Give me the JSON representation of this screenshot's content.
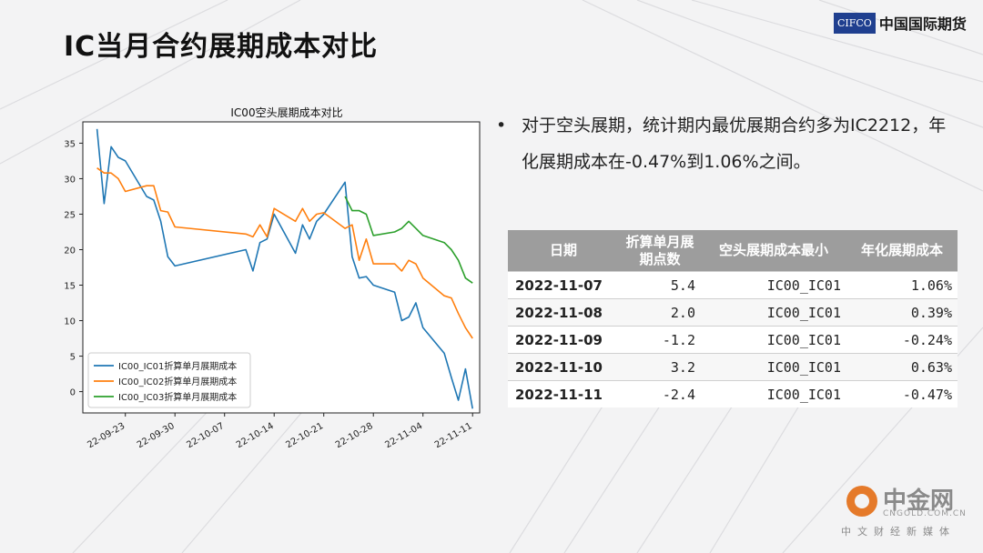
{
  "slide": {
    "title": "IC当月合约展期成本对比",
    "logo_box": "CIFCO",
    "logo_text": "中国国际期货"
  },
  "bullet": {
    "marker": "•",
    "text": "对于空头展期，统计期内最优展期合约多为IC2212，年化展期成本在-0.47%到1.06%之间。"
  },
  "table": {
    "headers": [
      "日期",
      "折算单月展期点数",
      "空头展期成本最小",
      "年化展期成本"
    ],
    "rows": [
      [
        "2022-11-07",
        "5.4",
        "IC00_IC01",
        "1.06%"
      ],
      [
        "2022-11-08",
        "2.0",
        "IC00_IC01",
        "0.39%"
      ],
      [
        "2022-11-09",
        "-1.2",
        "IC00_IC01",
        "-0.24%"
      ],
      [
        "2022-11-10",
        "3.2",
        "IC00_IC01",
        "0.63%"
      ],
      [
        "2022-11-11",
        "-2.4",
        "IC00_IC01",
        "-0.47%"
      ]
    ]
  },
  "watermark": {
    "name": "中金网",
    "domain": "CNGOLD.COM.CN",
    "sub": "中文财经新媒体"
  },
  "colors": {
    "series1": "#1f77b4",
    "series2": "#ff7f0e",
    "series3": "#2ca02c",
    "header_gray": "#9d9d9d"
  },
  "chart_data": {
    "type": "line",
    "title": "IC00空头展期成本对比",
    "xlabel": "",
    "ylabel": "",
    "x_tick_labels": [
      "22-09-23",
      "22-09-30",
      "22-10-07",
      "22-10-14",
      "22-10-21",
      "22-10-28",
      "22-11-04",
      "22-11-11"
    ],
    "y_ticks": [
      0,
      5,
      10,
      15,
      20,
      25,
      30,
      35
    ],
    "xlim": [
      "2022-09-17",
      "2022-11-12"
    ],
    "ylim": [
      -3,
      38
    ],
    "grid": false,
    "legend_position": "lower-left",
    "series": [
      {
        "name": "IC00_IC01折算单月展期成本",
        "points": [
          [
            "2022-09-19",
            37.0
          ],
          [
            "2022-09-20",
            26.5
          ],
          [
            "2022-09-21",
            34.5
          ],
          [
            "2022-09-22",
            33.0
          ],
          [
            "2022-09-23",
            32.5
          ],
          [
            "2022-09-26",
            27.5
          ],
          [
            "2022-09-27",
            27.0
          ],
          [
            "2022-09-28",
            24.0
          ],
          [
            "2022-09-29",
            19.0
          ],
          [
            "2022-09-30",
            17.7
          ],
          [
            "2022-10-10",
            20.0
          ],
          [
            "2022-10-11",
            17.0
          ],
          [
            "2022-10-12",
            21.0
          ],
          [
            "2022-10-13",
            21.5
          ],
          [
            "2022-10-14",
            25.0
          ],
          [
            "2022-10-17",
            19.5
          ],
          [
            "2022-10-18",
            23.5
          ],
          [
            "2022-10-19",
            21.5
          ],
          [
            "2022-10-20",
            24.0
          ],
          [
            "2022-10-21",
            25.0
          ],
          [
            "2022-10-24",
            29.5
          ],
          [
            "2022-10-25",
            19.0
          ],
          [
            "2022-10-26",
            16.0
          ],
          [
            "2022-10-27",
            16.2
          ],
          [
            "2022-10-28",
            15.0
          ],
          [
            "2022-10-31",
            14.0
          ],
          [
            "2022-11-01",
            10.0
          ],
          [
            "2022-11-02",
            10.5
          ],
          [
            "2022-11-03",
            12.5
          ],
          [
            "2022-11-04",
            9.0
          ],
          [
            "2022-11-07",
            5.4
          ],
          [
            "2022-11-08",
            2.0
          ],
          [
            "2022-11-09",
            -1.2
          ],
          [
            "2022-11-10",
            3.2
          ],
          [
            "2022-11-11",
            -2.4
          ]
        ]
      },
      {
        "name": "IC00_IC02折算单月展期成本",
        "points": [
          [
            "2022-09-19",
            31.5
          ],
          [
            "2022-09-20",
            30.8
          ],
          [
            "2022-09-21",
            30.8
          ],
          [
            "2022-09-22",
            30.0
          ],
          [
            "2022-09-23",
            28.2
          ],
          [
            "2022-09-26",
            29.0
          ],
          [
            "2022-09-27",
            29.0
          ],
          [
            "2022-09-28",
            25.5
          ],
          [
            "2022-09-29",
            25.3
          ],
          [
            "2022-09-30",
            23.2
          ],
          [
            "2022-10-10",
            22.2
          ],
          [
            "2022-10-11",
            21.8
          ],
          [
            "2022-10-12",
            23.5
          ],
          [
            "2022-10-13",
            21.8
          ],
          [
            "2022-10-14",
            25.8
          ],
          [
            "2022-10-17",
            24.0
          ],
          [
            "2022-10-18",
            25.8
          ],
          [
            "2022-10-19",
            24.0
          ],
          [
            "2022-10-20",
            25.0
          ],
          [
            "2022-10-21",
            25.2
          ],
          [
            "2022-10-24",
            23.0
          ],
          [
            "2022-10-25",
            23.5
          ],
          [
            "2022-10-26",
            18.5
          ],
          [
            "2022-10-27",
            21.5
          ],
          [
            "2022-10-28",
            18.0
          ],
          [
            "2022-10-31",
            18.0
          ],
          [
            "2022-11-01",
            17.0
          ],
          [
            "2022-11-02",
            18.5
          ],
          [
            "2022-11-03",
            18.0
          ],
          [
            "2022-11-04",
            16.0
          ],
          [
            "2022-11-07",
            13.5
          ],
          [
            "2022-11-08",
            13.2
          ],
          [
            "2022-11-09",
            11.0
          ],
          [
            "2022-11-10",
            9.0
          ],
          [
            "2022-11-11",
            7.5
          ]
        ]
      },
      {
        "name": "IC00_IC03折算单月展期成本",
        "points": [
          [
            "2022-10-24",
            27.5
          ],
          [
            "2022-10-25",
            25.5
          ],
          [
            "2022-10-26",
            25.5
          ],
          [
            "2022-10-27",
            25.0
          ],
          [
            "2022-10-28",
            22.0
          ],
          [
            "2022-10-31",
            22.5
          ],
          [
            "2022-11-01",
            23.0
          ],
          [
            "2022-11-02",
            24.0
          ],
          [
            "2022-11-03",
            23.0
          ],
          [
            "2022-11-04",
            22.0
          ],
          [
            "2022-11-07",
            21.0
          ],
          [
            "2022-11-08",
            20.0
          ],
          [
            "2022-11-09",
            18.5
          ],
          [
            "2022-11-10",
            16.0
          ],
          [
            "2022-11-11",
            15.3
          ]
        ]
      }
    ]
  }
}
